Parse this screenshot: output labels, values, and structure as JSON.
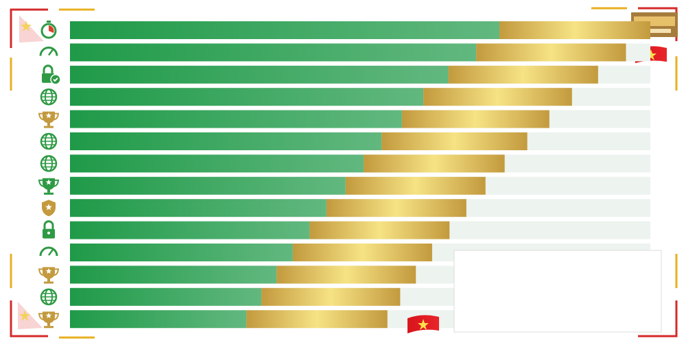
{
  "chart_data": {
    "type": "stacked-bar-horizontal",
    "xlim": [
      0,
      100
    ],
    "track_color": "#edf3ee",
    "series": [
      {
        "color": "#1f9a48",
        "values": [
          74.0,
          70.0,
          65.2,
          60.9,
          57.2,
          53.7,
          50.6,
          47.5,
          44.2,
          41.3,
          38.4,
          35.6,
          33.0,
          30.4
        ]
      },
      {
        "color": "#c39a3e",
        "values": [
          26.0,
          25.8,
          25.8,
          25.6,
          25.4,
          25.1,
          24.3,
          24.1,
          24.1,
          24.1,
          24.0,
          24.0,
          23.9,
          24.3
        ]
      }
    ]
  }
}
